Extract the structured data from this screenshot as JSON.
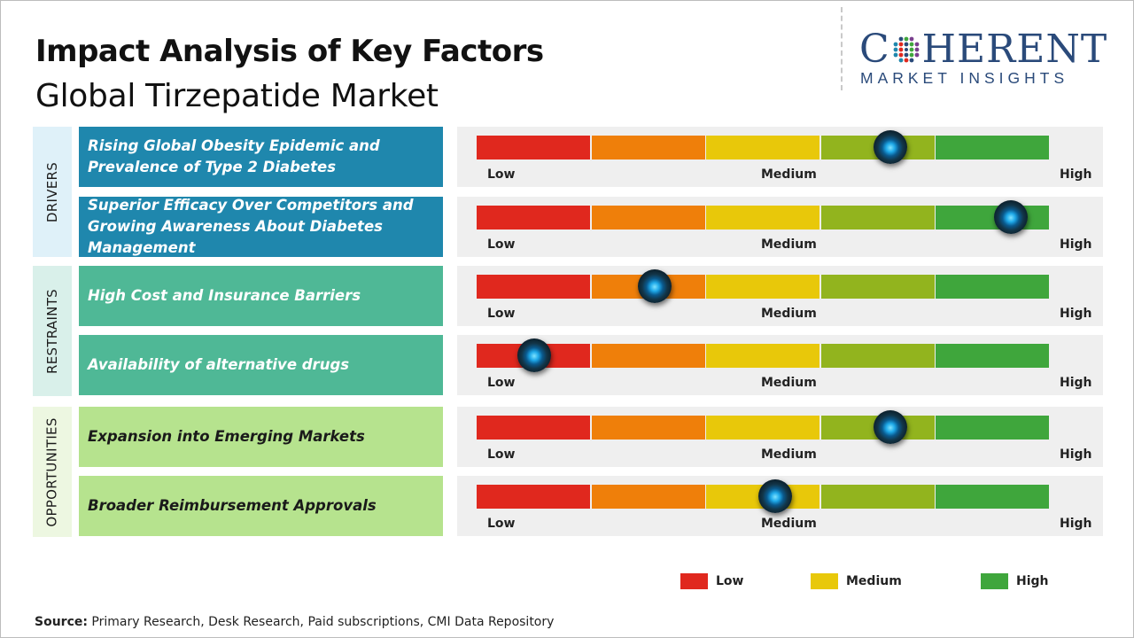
{
  "header": {
    "title": "Impact Analysis of Key Factors",
    "subtitle": "Global Tirzepatide Market"
  },
  "logo": {
    "main_before": "C",
    "main_after": "HERENT",
    "sub": "MARKET INSIGHTS",
    "color": "#2a4a7a"
  },
  "scale": {
    "low": "Low",
    "medium": "Medium",
    "high": "High"
  },
  "segment_colors": [
    "#e0281e",
    "#ef7f0a",
    "#e8c80a",
    "#92b41e",
    "#3fa63c"
  ],
  "chart_data": {
    "type": "table",
    "title": "Impact Analysis of Key Factors",
    "subtitle": "Global Tirzepatide Market",
    "scale_min": 0,
    "scale_max": 1,
    "categories": [
      {
        "name": "DRIVERS",
        "panel_color": "#dff1f9",
        "factor_color": "#1f87ad",
        "text_color": "#ffffff",
        "factors": [
          {
            "label": "Rising Global Obesity Epidemic and Prevalence of Type 2 Diabetes",
            "impact": 0.72
          },
          {
            "label": "Superior Efficacy Over Competitors and Growing Awareness About Diabetes Management",
            "impact": 0.93
          }
        ]
      },
      {
        "name": "RESTRAINTS",
        "panel_color": "#d9f0ea",
        "factor_color": "#4fb896",
        "text_color": "#ffffff",
        "factors": [
          {
            "label": "High Cost and Insurance Barriers",
            "impact": 0.31
          },
          {
            "label": "Availability of alternative drugs",
            "impact": 0.1
          }
        ]
      },
      {
        "name": "OPPORTUNITIES",
        "panel_color": "#edf7e1",
        "factor_color": "#b6e38e",
        "text_color": "#1a1a1a",
        "factors": [
          {
            "label": "Expansion into Emerging Markets",
            "impact": 0.72
          },
          {
            "label": "Broader Reimbursement Approvals",
            "impact": 0.52
          }
        ]
      }
    ],
    "legend": [
      {
        "label": "Low",
        "color": "#e0281e"
      },
      {
        "label": "Medium",
        "color": "#e8c80a"
      },
      {
        "label": "High",
        "color": "#3fa63c"
      }
    ]
  },
  "source": {
    "label": "Source:",
    "text": "Primary Research, Desk Research, Paid subscriptions, CMI Data Repository"
  }
}
